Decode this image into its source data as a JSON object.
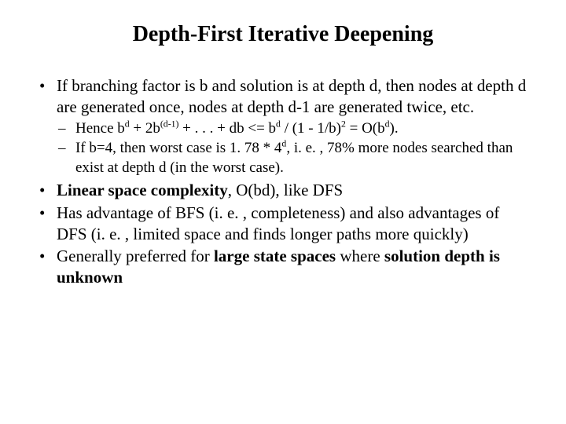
{
  "title": "Depth-First Iterative Deepening",
  "colors": {
    "background": "#ffffff",
    "text": "#000000"
  },
  "typography": {
    "family": "Times New Roman",
    "title_pt": 28,
    "body_pt": 21,
    "sub_pt": 19
  },
  "bullets": [
    {
      "text_html": "If branching factor is b and solution is at depth d, then nodes at depth d are generated once, nodes at depth d-1 are generated twice, etc.",
      "sub": [
        {
          "text_html": "Hence b<sup>d</sup> + 2b<sup>(d-1)</sup> + . . . + db <= b<sup>d</sup> / (1 - 1/b)<sup>2</sup> = O(b<sup>d</sup>)."
        },
        {
          "text_html": "If b=4, then worst case is 1. 78 * 4<sup>d</sup>, i. e. , 78% more nodes searched than exist at depth d (in the worst case)."
        }
      ]
    },
    {
      "text_html": "<span class=\"bold\">Linear space complexity</span>, O(bd), like DFS"
    },
    {
      "text_html": "Has advantage of BFS (i. e. , completeness) and also advantages of DFS (i. e. , limited space and finds longer paths more quickly)"
    },
    {
      "text_html": "Generally preferred for <span class=\"bold\">large state spaces</span> where <span class=\"bold\">solution depth is unknown</span>"
    }
  ]
}
